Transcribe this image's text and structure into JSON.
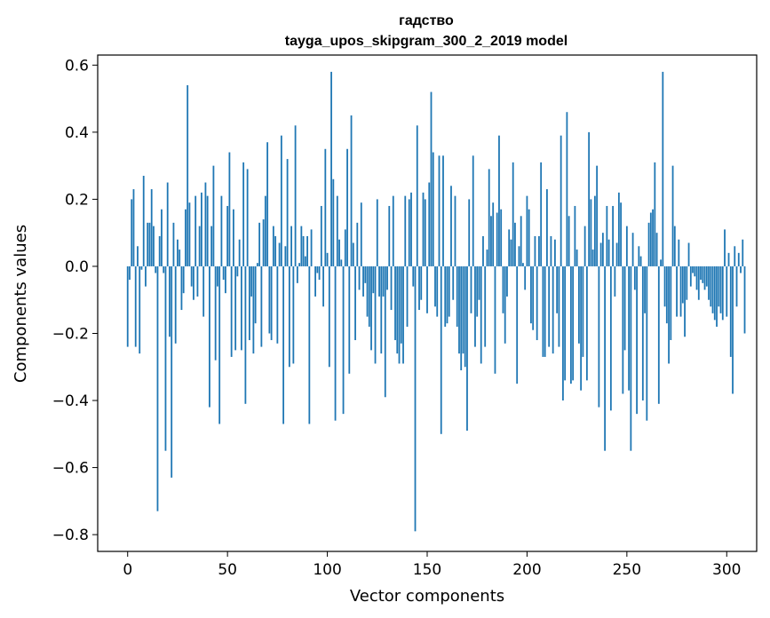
{
  "chart_data": {
    "type": "bar",
    "title": "гадство",
    "subtitle": "tayga_upos_skipgram_300_2_2019 model",
    "xlabel": "Vector components",
    "ylabel": "Components values",
    "xlim": [
      -15,
      315
    ],
    "ylim": [
      -0.85,
      0.63
    ],
    "xticks": [
      0,
      50,
      100,
      150,
      200,
      250,
      300
    ],
    "xtick_labels": [
      "0",
      "50",
      "100",
      "150",
      "200",
      "250",
      "300"
    ],
    "yticks": [
      -0.8,
      -0.6,
      -0.4,
      -0.2,
      0.0,
      0.2,
      0.4,
      0.6
    ],
    "ytick_labels": [
      "−0.8",
      "−0.6",
      "−0.4",
      "−0.2",
      "0.0",
      "0.2",
      "0.4",
      "0.6"
    ],
    "bar_color": "#1f77b4",
    "grid": false,
    "values": [
      -0.24,
      -0.04,
      0.2,
      0.23,
      -0.24,
      0.06,
      -0.26,
      -0.01,
      0.27,
      -0.06,
      0.13,
      0.13,
      0.23,
      0.12,
      -0.02,
      -0.73,
      0.09,
      0.17,
      -0.02,
      -0.55,
      0.25,
      -0.21,
      -0.63,
      0.13,
      -0.23,
      0.08,
      0.05,
      -0.13,
      -0.08,
      0.17,
      0.54,
      0.19,
      -0.06,
      -0.1,
      0.21,
      -0.09,
      0.12,
      0.22,
      -0.15,
      0.25,
      0.21,
      -0.42,
      0.12,
      0.3,
      -0.28,
      -0.06,
      -0.47,
      0.21,
      -0.04,
      -0.08,
      0.18,
      0.34,
      -0.27,
      0.17,
      -0.25,
      -0.03,
      0.08,
      -0.25,
      0.31,
      -0.41,
      0.29,
      -0.22,
      -0.09,
      -0.26,
      -0.17,
      0.01,
      0.13,
      -0.24,
      0.14,
      0.21,
      0.37,
      -0.2,
      -0.22,
      0.12,
      0.09,
      -0.23,
      0.07,
      0.39,
      -0.47,
      0.06,
      0.32,
      -0.3,
      0.12,
      -0.29,
      0.42,
      -0.05,
      0.01,
      0.12,
      0.09,
      0.03,
      0.09,
      -0.47,
      0.11,
      0.0,
      -0.09,
      -0.02,
      -0.04,
      0.18,
      -0.12,
      0.35,
      0.04,
      -0.3,
      0.58,
      0.26,
      -0.46,
      0.21,
      0.08,
      0.02,
      -0.44,
      0.11,
      0.35,
      -0.32,
      0.45,
      0.07,
      -0.22,
      0.13,
      -0.07,
      0.19,
      -0.09,
      -0.05,
      -0.15,
      -0.18,
      -0.25,
      -0.08,
      -0.29,
      0.2,
      -0.09,
      -0.26,
      -0.09,
      -0.39,
      -0.07,
      0.18,
      -0.13,
      0.21,
      -0.22,
      -0.26,
      -0.29,
      -0.23,
      -0.29,
      0.21,
      -0.18,
      0.2,
      0.22,
      -0.06,
      -0.79,
      0.42,
      -0.13,
      -0.1,
      0.22,
      0.2,
      -0.14,
      0.25,
      0.52,
      0.34,
      -0.12,
      -0.15,
      0.33,
      -0.5,
      0.33,
      -0.18,
      -0.17,
      -0.15,
      0.24,
      -0.1,
      0.21,
      -0.18,
      -0.26,
      -0.31,
      -0.26,
      -0.3,
      -0.49,
      0.2,
      -0.14,
      0.33,
      -0.24,
      -0.15,
      -0.1,
      -0.29,
      0.09,
      -0.24,
      0.05,
      0.29,
      0.15,
      0.19,
      -0.32,
      0.16,
      0.39,
      0.17,
      -0.14,
      -0.23,
      -0.09,
      0.11,
      0.08,
      0.31,
      0.13,
      -0.35,
      0.06,
      0.15,
      0.01,
      -0.07,
      0.21,
      0.17,
      -0.17,
      -0.19,
      0.09,
      -0.22,
      0.09,
      0.31,
      -0.27,
      -0.27,
      0.23,
      -0.24,
      0.09,
      -0.26,
      0.08,
      -0.14,
      -0.24,
      0.39,
      -0.4,
      -0.34,
      0.46,
      0.15,
      -0.35,
      -0.34,
      0.18,
      0.05,
      -0.23,
      -0.37,
      -0.27,
      0.12,
      -0.34,
      0.4,
      0.2,
      0.05,
      0.21,
      0.3,
      -0.42,
      0.07,
      0.1,
      -0.55,
      0.18,
      0.08,
      -0.43,
      0.18,
      -0.09,
      0.07,
      0.22,
      0.19,
      -0.38,
      -0.25,
      0.12,
      -0.37,
      -0.55,
      0.1,
      -0.07,
      -0.44,
      0.06,
      0.03,
      -0.4,
      -0.14,
      -0.46,
      0.13,
      0.16,
      0.17,
      0.31,
      0.1,
      -0.41,
      0.02,
      0.58,
      -0.12,
      -0.17,
      -0.29,
      -0.22,
      0.3,
      0.12,
      -0.15,
      0.08,
      -0.15,
      -0.11,
      -0.21,
      -0.1,
      0.07,
      -0.06,
      -0.02,
      -0.03,
      -0.07,
      -0.1,
      -0.04,
      -0.05,
      -0.07,
      -0.06,
      -0.1,
      -0.12,
      -0.14,
      -0.16,
      -0.18,
      -0.12,
      -0.14,
      -0.16,
      0.11,
      -0.15,
      0.04,
      -0.27,
      -0.38,
      0.06,
      -0.12,
      0.04,
      -0.02,
      0.08,
      -0.2
    ]
  }
}
